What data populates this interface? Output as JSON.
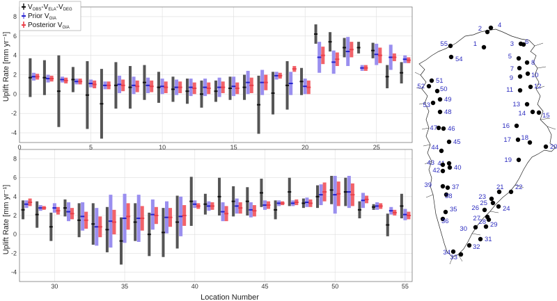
{
  "chart_data": [
    {
      "type": "errorbar",
      "panel": "top",
      "ylabel": "Uplift Rate [mm yr⁻¹]",
      "xlabel": "",
      "xlim": [
        0,
        27.5
      ],
      "ylim": [
        -5,
        9
      ],
      "xticks": [
        0,
        5,
        10,
        15,
        20,
        25
      ],
      "yticks": [
        -4,
        -2,
        0,
        2,
        4,
        6,
        8
      ],
      "grid": true,
      "legend": {
        "placement": "top-left",
        "entries": [
          {
            "label": "Vₒᵦₛ-Vₑₗₐ-Vₒₑᵧ",
            "label_main": "V",
            "sub1": "OBS",
            "mid1": "-V",
            "sub2": "ELA",
            "mid2": "-V",
            "sub3": "DEG",
            "color": "#555555"
          },
          {
            "label": "Prior Vᴲᴵᴬ",
            "label_main": "Prior V",
            "sub1": "GIA",
            "color": "#2222cc"
          },
          {
            "label": "Posterior Vᴲᴵᴬ",
            "label_main": "Posterior V",
            "sub1": "GIA",
            "color": "#e8404a"
          }
        ]
      },
      "series": [
        {
          "name": "obs",
          "color": "#555555",
          "points": [
            [
              1,
              1.7,
              2.0
            ],
            [
              2,
              1.7,
              1.8
            ],
            [
              3,
              0.3,
              3.7
            ],
            [
              4,
              1.5,
              1.3
            ],
            [
              5,
              -0.1,
              3.5
            ],
            [
              6,
              -1.0,
              3.6
            ],
            [
              7,
              0.9,
              2.4
            ],
            [
              8,
              0.7,
              2.2
            ],
            [
              9,
              1.2,
              1.8
            ],
            [
              10,
              0.7,
              1.6
            ],
            [
              11,
              0.5,
              1.3
            ],
            [
              12,
              0.3,
              1.3
            ],
            [
              13,
              0.0,
              1.4
            ],
            [
              14,
              0.3,
              1.1
            ],
            [
              15,
              0.6,
              1.2
            ],
            [
              16,
              0.7,
              1.3
            ],
            [
              17,
              -1.1,
              3.0
            ],
            [
              18,
              0.1,
              2.2
            ],
            [
              19,
              0.9,
              2.5
            ],
            [
              20,
              1.3,
              1.4
            ],
            [
              21,
              6.2,
              1.0
            ],
            [
              22,
              5.4,
              1.0
            ],
            [
              23,
              4.8,
              1.0
            ],
            [
              24,
              4.8,
              0.6
            ],
            [
              25,
              4.5,
              0.8
            ],
            [
              26,
              1.8,
              1.2
            ],
            [
              27,
              2.2,
              1.1
            ]
          ]
        },
        {
          "name": "prior",
          "color": "#9a8fef",
          "points": [
            [
              1,
              1.8,
              0.4
            ],
            [
              2,
              1.6,
              0.4
            ],
            [
              3,
              1.5,
              0.3
            ],
            [
              4,
              1.3,
              0.3
            ],
            [
              5,
              1.1,
              0.4
            ],
            [
              6,
              0.9,
              0.4
            ],
            [
              7,
              1.0,
              0.9
            ],
            [
              8,
              0.9,
              0.9
            ],
            [
              9,
              0.9,
              0.8
            ],
            [
              10,
              0.8,
              0.8
            ],
            [
              11,
              0.7,
              0.8
            ],
            [
              12,
              0.7,
              0.9
            ],
            [
              13,
              0.7,
              0.9
            ],
            [
              14,
              0.7,
              1.0
            ],
            [
              15,
              0.8,
              1.0
            ],
            [
              16,
              1.2,
              1.2
            ],
            [
              17,
              1.2,
              1.3
            ],
            [
              18,
              1.9,
              0.4
            ],
            [
              19,
              1.1,
              1.2
            ],
            [
              20,
              0.8,
              0.8
            ],
            [
              21,
              3.8,
              1.6
            ],
            [
              22,
              3.3,
              1.2
            ],
            [
              23,
              4.4,
              1.5
            ],
            [
              24,
              2.7,
              0.3
            ],
            [
              25,
              4.1,
              1.1
            ],
            [
              26,
              3.8,
              1.3
            ],
            [
              27,
              3.6,
              0.4
            ]
          ]
        },
        {
          "name": "posterior",
          "color": "#f2636a",
          "points": [
            [
              1,
              1.8,
              0.3
            ],
            [
              2,
              1.6,
              0.3
            ],
            [
              3,
              1.4,
              0.3
            ],
            [
              4,
              1.3,
              0.3
            ],
            [
              5,
              1.0,
              0.4
            ],
            [
              6,
              0.9,
              0.4
            ],
            [
              7,
              0.9,
              0.6
            ],
            [
              8,
              0.8,
              0.6
            ],
            [
              9,
              0.8,
              0.6
            ],
            [
              10,
              0.7,
              0.6
            ],
            [
              11,
              0.7,
              0.6
            ],
            [
              12,
              0.6,
              0.6
            ],
            [
              13,
              0.6,
              0.6
            ],
            [
              14,
              0.7,
              0.6
            ],
            [
              15,
              0.6,
              0.6
            ],
            [
              16,
              0.9,
              0.8
            ],
            [
              17,
              1.2,
              0.8
            ],
            [
              18,
              1.9,
              0.3
            ],
            [
              19,
              2.6,
              0.3
            ],
            [
              20,
              0.7,
              0.7
            ],
            [
              21,
              4.0,
              0.9
            ],
            [
              22,
              3.6,
              0.7
            ],
            [
              23,
              4.6,
              0.8
            ],
            [
              24,
              2.7,
              0.3
            ],
            [
              25,
              4.0,
              0.8
            ],
            [
              26,
              3.8,
              0.4
            ],
            [
              27,
              3.5,
              0.3
            ]
          ]
        }
      ]
    },
    {
      "type": "errorbar",
      "panel": "bottom",
      "ylabel": "Uplift Rate [mm yr⁻¹]",
      "xlabel": "Location Number",
      "xlim": [
        27.5,
        55.5
      ],
      "ylim": [
        -5,
        9
      ],
      "xticks": [
        30,
        35,
        40,
        45,
        50,
        55
      ],
      "yticks": [
        -4,
        -2,
        0,
        2,
        4,
        6,
        8
      ],
      "grid": true,
      "series": [
        {
          "name": "obs",
          "color": "#555555",
          "points": [
            [
              28,
              2.6,
              1.0
            ],
            [
              29,
              2.1,
              1.4
            ],
            [
              30,
              0.8,
              1.5
            ],
            [
              31,
              2.8,
              0.9
            ],
            [
              32,
              1.5,
              1.8
            ],
            [
              33,
              1.1,
              2.2
            ],
            [
              34,
              0.5,
              2.4
            ],
            [
              35,
              -0.7,
              2.5
            ],
            [
              36,
              1.3,
              2.0
            ],
            [
              37,
              0.0,
              2.3
            ],
            [
              38,
              0.2,
              2.6
            ],
            [
              39,
              1.3,
              2.8
            ],
            [
              40,
              3.5,
              2.6
            ],
            [
              41,
              3.2,
              1.1
            ],
            [
              42,
              4.0,
              2.0
            ],
            [
              43,
              3.5,
              1.6
            ],
            [
              44,
              3.5,
              1.5
            ],
            [
              45,
              4.4,
              1.5
            ],
            [
              46,
              2.6,
              1.0
            ],
            [
              47,
              4.5,
              1.5
            ],
            [
              48,
              3.3,
              0.5
            ],
            [
              49,
              4.0,
              1.2
            ],
            [
              50,
              4.7,
              1.5
            ],
            [
              51,
              4.5,
              1.5
            ],
            [
              52,
              2.6,
              0.9
            ],
            [
              53,
              2.9,
              0.3
            ],
            [
              54,
              1.0,
              1.2
            ],
            [
              55,
              3.0,
              1.3
            ]
          ]
        },
        {
          "name": "prior",
          "color": "#9a8fef",
          "points": [
            [
              28,
              3.2,
              0.4
            ],
            [
              29,
              2.8,
              0.3
            ],
            [
              30,
              2.8,
              0.5
            ],
            [
              31,
              2.4,
              1.0
            ],
            [
              32,
              1.9,
              1.5
            ],
            [
              33,
              0.8,
              2.0
            ],
            [
              34,
              1.4,
              2.8
            ],
            [
              35,
              1.7,
              2.6
            ],
            [
              36,
              1.7,
              2.5
            ],
            [
              37,
              2.1,
              1.6
            ],
            [
              38,
              1.8,
              1.7
            ],
            [
              39,
              1.9,
              2.1
            ],
            [
              40,
              3.2,
              0.4
            ],
            [
              41,
              3.0,
              0.5
            ],
            [
              42,
              2.4,
              1.0
            ],
            [
              43,
              3.0,
              0.8
            ],
            [
              44,
              2.6,
              0.8
            ],
            [
              45,
              3.1,
              0.5
            ],
            [
              46,
              3.3,
              0.3
            ],
            [
              47,
              3.3,
              0.3
            ],
            [
              48,
              3.4,
              0.5
            ],
            [
              49,
              4.2,
              1.1
            ],
            [
              50,
              4.2,
              2.0
            ],
            [
              51,
              4.5,
              1.7
            ],
            [
              52,
              3.6,
              0.8
            ],
            [
              53,
              3.0,
              0.4
            ],
            [
              54,
              2.5,
              0.4
            ],
            [
              55,
              2.1,
              0.6
            ]
          ]
        },
        {
          "name": "posterior",
          "color": "#f2636a",
          "points": [
            [
              28,
              3.4,
              0.4
            ],
            [
              29,
              2.8,
              0.2
            ],
            [
              30,
              2.5,
              0.4
            ],
            [
              31,
              2.2,
              0.6
            ],
            [
              32,
              1.5,
              0.9
            ],
            [
              33,
              0.8,
              1.1
            ],
            [
              34,
              1.3,
              1.3
            ],
            [
              35,
              1.9,
              1.4
            ],
            [
              36,
              1.7,
              1.3
            ],
            [
              37,
              2.0,
              0.9
            ],
            [
              38,
              1.8,
              1.0
            ],
            [
              39,
              2.0,
              1.1
            ],
            [
              40,
              3.0,
              0.3
            ],
            [
              41,
              3.0,
              0.4
            ],
            [
              42,
              2.2,
              0.8
            ],
            [
              43,
              2.8,
              0.6
            ],
            [
              44,
              2.5,
              0.6
            ],
            [
              45,
              3.1,
              0.4
            ],
            [
              46,
              3.3,
              0.2
            ],
            [
              47,
              3.4,
              0.3
            ],
            [
              48,
              3.3,
              0.4
            ],
            [
              49,
              4.5,
              1.0
            ],
            [
              50,
              4.3,
              1.3
            ],
            [
              51,
              4.2,
              1.2
            ],
            [
              52,
              3.7,
              0.4
            ],
            [
              53,
              3.0,
              0.3
            ],
            [
              54,
              2.3,
              0.3
            ],
            [
              55,
              2.0,
              0.4
            ]
          ]
        }
      ]
    }
  ],
  "map": {
    "labels": [
      {
        "n": "1"
      },
      {
        "n": "2"
      },
      {
        "n": "4"
      },
      {
        "n": "3"
      },
      {
        "n": "5"
      },
      {
        "n": "6"
      },
      {
        "n": "7"
      },
      {
        "n": "8"
      },
      {
        "n": "9"
      },
      {
        "n": "10"
      },
      {
        "n": "11"
      },
      {
        "n": "12"
      },
      {
        "n": "13"
      },
      {
        "n": "14"
      },
      {
        "n": "15"
      },
      {
        "n": "16"
      },
      {
        "n": "17"
      },
      {
        "n": "18"
      },
      {
        "n": "19"
      },
      {
        "n": "20"
      },
      {
        "n": "21"
      },
      {
        "n": "22"
      },
      {
        "n": "23"
      },
      {
        "n": "24"
      },
      {
        "n": "25"
      },
      {
        "n": "26"
      },
      {
        "n": "27"
      },
      {
        "n": "28"
      },
      {
        "n": "29"
      },
      {
        "n": "30"
      },
      {
        "n": "31"
      },
      {
        "n": "32"
      },
      {
        "n": "33"
      },
      {
        "n": "34"
      },
      {
        "n": "35"
      },
      {
        "n": "36"
      },
      {
        "n": "37"
      },
      {
        "n": "38"
      },
      {
        "n": "39"
      },
      {
        "n": "40"
      },
      {
        "n": "41"
      },
      {
        "n": "42"
      },
      {
        "n": "43"
      },
      {
        "n": "44"
      },
      {
        "n": "45"
      },
      {
        "n": "46"
      },
      {
        "n": "47"
      },
      {
        "n": "48"
      },
      {
        "n": "49"
      },
      {
        "n": "50"
      },
      {
        "n": "51"
      },
      {
        "n": "52"
      },
      {
        "n": "53"
      },
      {
        "n": "54"
      },
      {
        "n": "55"
      }
    ]
  }
}
